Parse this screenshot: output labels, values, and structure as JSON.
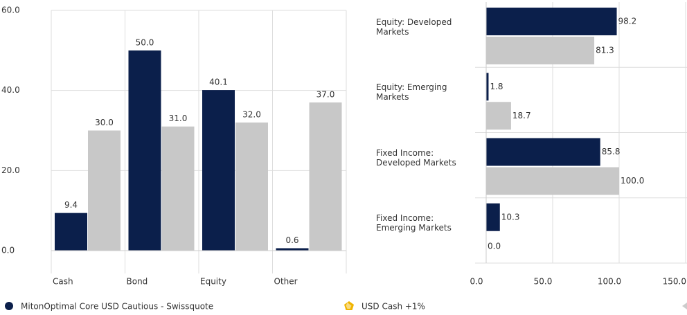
{
  "chart_data": [
    {
      "type": "bar",
      "categories": [
        "Cash",
        "Bond",
        "Equity",
        "Other"
      ],
      "series": [
        {
          "name": "MitonOptimal Core USD Cautious - Swissquote",
          "color": "#0b1f4b",
          "values": [
            9.4,
            50.0,
            40.1,
            0.6
          ],
          "value_labels": [
            "9.4",
            "50.0",
            "40.1",
            "0.6"
          ]
        },
        {
          "name": "USD Cash +1%",
          "color": "#c8c8c8",
          "values": [
            30.0,
            31.0,
            32.0,
            37.0
          ],
          "value_labels": [
            "30.0",
            "31.0",
            "32.0",
            "37.0"
          ]
        }
      ],
      "ylim": [
        0,
        60
      ],
      "yticks": [
        {
          "value": 0,
          "label": "0.0"
        },
        {
          "value": 20,
          "label": "20.0"
        },
        {
          "value": 40,
          "label": "40.0"
        },
        {
          "value": 60,
          "label": "60.0"
        }
      ],
      "grid": true
    },
    {
      "type": "barh",
      "categories": [
        "Equity: Developed Markets",
        "Equity: Emerging Markets",
        "Fixed Income: Developed Markets",
        "Fixed Income: Emerging Markets"
      ],
      "series": [
        {
          "name": "MitonOptimal Core USD Cautious - Swissquote",
          "color": "#0b1f4b",
          "values": [
            98.2,
            1.8,
            85.8,
            10.3
          ],
          "value_labels": [
            "98.2",
            "1.8",
            "85.8",
            "10.3"
          ]
        },
        {
          "name": "USD Cash +1%",
          "color": "#c8c8c8",
          "values": [
            81.3,
            18.7,
            100.0,
            0.0
          ],
          "value_labels": [
            "81.3",
            "18.7",
            "100.0",
            "0.0"
          ]
        }
      ],
      "xlim": [
        0,
        150
      ],
      "xticks": [
        {
          "value": 0,
          "label": "0.0"
        },
        {
          "value": 50,
          "label": "50.0"
        },
        {
          "value": 100,
          "label": "100.0"
        },
        {
          "value": 150,
          "label": "150.0"
        }
      ],
      "grid": true
    }
  ]
}
